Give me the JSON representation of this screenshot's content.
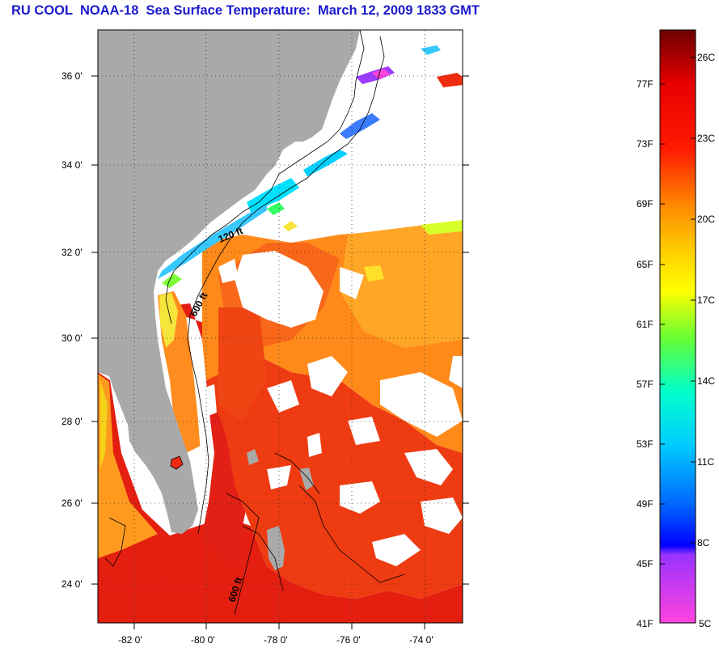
{
  "title": "RU COOL  NOAA-18  Sea Surface Temperature:  March 12, 2009 1833 GMT",
  "map": {
    "lat_labels": [
      "36 0'",
      "34 0'",
      "32 0'",
      "30 0'",
      "28 0'",
      "26 0'",
      "24 0'"
    ],
    "lon_labels": [
      "-82 0'",
      "-80 0'",
      "-78 0'",
      "-76 0'",
      "-74 0'"
    ],
    "contour_labels": [
      "120 ft",
      "600 ft",
      "600 ft"
    ]
  },
  "colorbar": {
    "fahrenheit": [
      "77F",
      "73F",
      "69F",
      "65F",
      "61F",
      "57F",
      "53F",
      "49F",
      "45F",
      "41F"
    ],
    "celsius": [
      "26C",
      "23C",
      "20C",
      "17C",
      "14C",
      "11C",
      "8C",
      "5C"
    ],
    "colors": [
      "#7a0000",
      "#ff0000",
      "#ff8c00",
      "#ffff00",
      "#00ff66",
      "#00ffff",
      "#0000ff",
      "#8a2be2",
      "#ff33cc"
    ]
  }
}
